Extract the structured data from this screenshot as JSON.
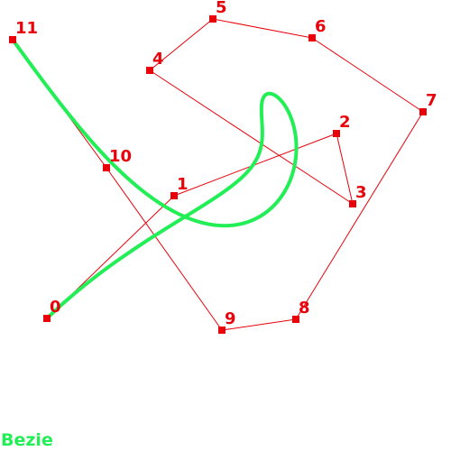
{
  "colors": {
    "control": "#e8000a",
    "curve": "#22ee55",
    "background": "#ffffff"
  },
  "caption": "Bezie",
  "control_points": [
    {
      "label": "0"
    },
    {
      "label": "1"
    },
    {
      "label": "2"
    },
    {
      "label": "3"
    },
    {
      "label": "4"
    },
    {
      "label": "5"
    },
    {
      "label": "6"
    },
    {
      "label": "7"
    },
    {
      "label": "8"
    },
    {
      "label": "9"
    },
    {
      "label": "10"
    },
    {
      "label": "11"
    }
  ]
}
